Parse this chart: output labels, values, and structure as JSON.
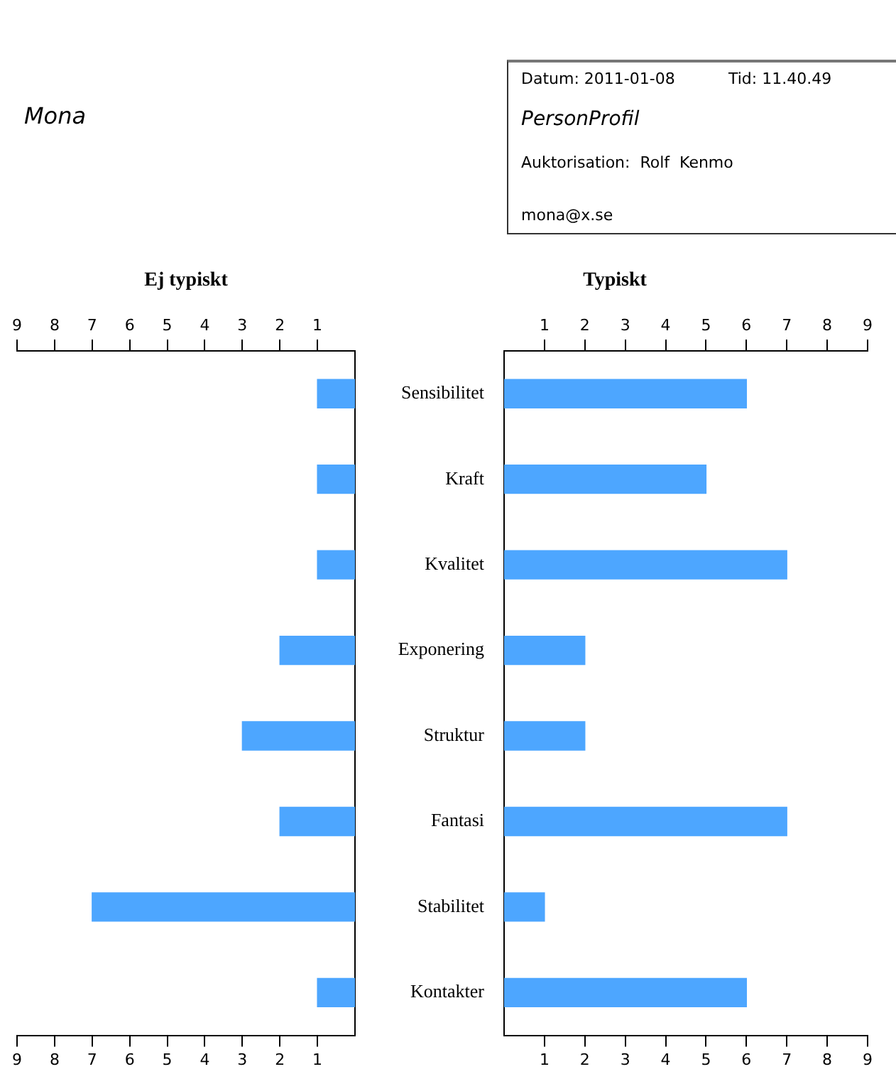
{
  "chart_data": [
    {
      "type": "other",
      "annotations": [
        "Mona",
        "Datum: 2011-01-08",
        "Tid: 11.40.49",
        "PersonProfil",
        "Auktorisation:  Rolf  Kenmo",
        "mona@x.se"
      ]
    },
    {
      "type": "bar",
      "orientation": "horizontal",
      "title": "Ej typiskt",
      "categories": [
        null,
        null,
        null,
        null,
        null,
        null,
        null,
        null
      ],
      "values": [
        1,
        1,
        1,
        2,
        3,
        2,
        7,
        1
      ],
      "color": "#4da6ff",
      "xlim": [
        9,
        0
      ],
      "xticks": [
        1,
        2,
        3,
        4,
        5,
        6,
        7,
        8,
        9
      ],
      "x2lim": [
        9,
        0
      ],
      "x2ticks": [
        1,
        2,
        3,
        4,
        5,
        6,
        7,
        8,
        9
      ],
      "tick_labels": "x",
      "grid": false,
      "legend": false
    },
    {
      "type": "bar",
      "orientation": "horizontal",
      "title": "Typiskt",
      "categories": [
        "Sensibilitet",
        "Kraft",
        "Kvalitet",
        "Exponering",
        "Struktur",
        "Fantasi",
        "Stabilitet",
        "Kontakter"
      ],
      "values": [
        6,
        5,
        7,
        2,
        2,
        7,
        1,
        6
      ],
      "color": "#4da6ff",
      "xlim": [
        0,
        9
      ],
      "xticks": [
        1,
        2,
        3,
        4,
        5,
        6,
        7,
        8,
        9
      ],
      "x2lim": [
        0,
        9
      ],
      "x2ticks": [
        1,
        2,
        3,
        4,
        5,
        6,
        7,
        8,
        9
      ],
      "grid": false,
      "legend": false
    }
  ]
}
